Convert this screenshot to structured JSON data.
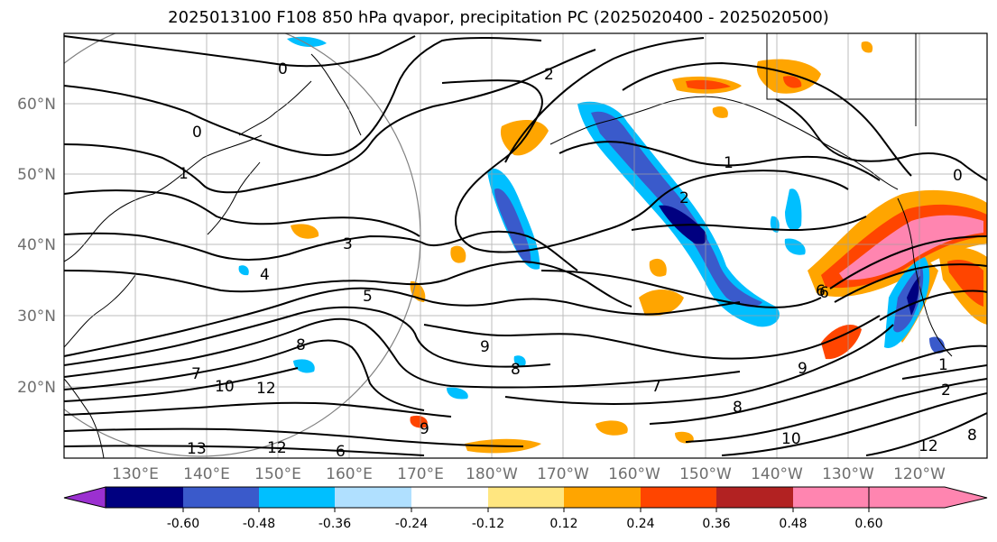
{
  "title": "2025013100 F108 850 hPa qvapor, precipitation PC (2025020400 - 2025020500)",
  "lat_ticks": [
    "60°N",
    "50°N",
    "40°N",
    "30°N",
    "20°N"
  ],
  "lon_ticks": [
    "130°E",
    "140°E",
    "150°E",
    "160°E",
    "170°E",
    "180°W",
    "170°W",
    "160°W",
    "150°W",
    "140°W",
    "130°W",
    "120°W"
  ],
  "contour_labels": [
    "0",
    "2",
    "1",
    "0",
    "1",
    "2",
    "3",
    "4",
    "5",
    "6",
    "7",
    "8",
    "9",
    "10",
    "12",
    "13",
    "6",
    "8",
    "9",
    "12",
    "2",
    "1",
    "6",
    "7",
    "8",
    "9",
    "10",
    "12",
    "8",
    "0"
  ],
  "colorbar": {
    "colors": [
      "#9b30d0",
      "#000080",
      "#3a5acb",
      "#00bfff",
      "#b0e0ff",
      "#ffffff",
      "#ffe680",
      "#ffa500",
      "#ff4500",
      "#b22222",
      "#ff85b0"
    ],
    "labels": [
      "-0.60",
      "-0.48",
      "-0.36",
      "-0.24",
      "-0.12",
      "0.12",
      "0.24",
      "0.36",
      "0.48",
      "0.60"
    ]
  }
}
